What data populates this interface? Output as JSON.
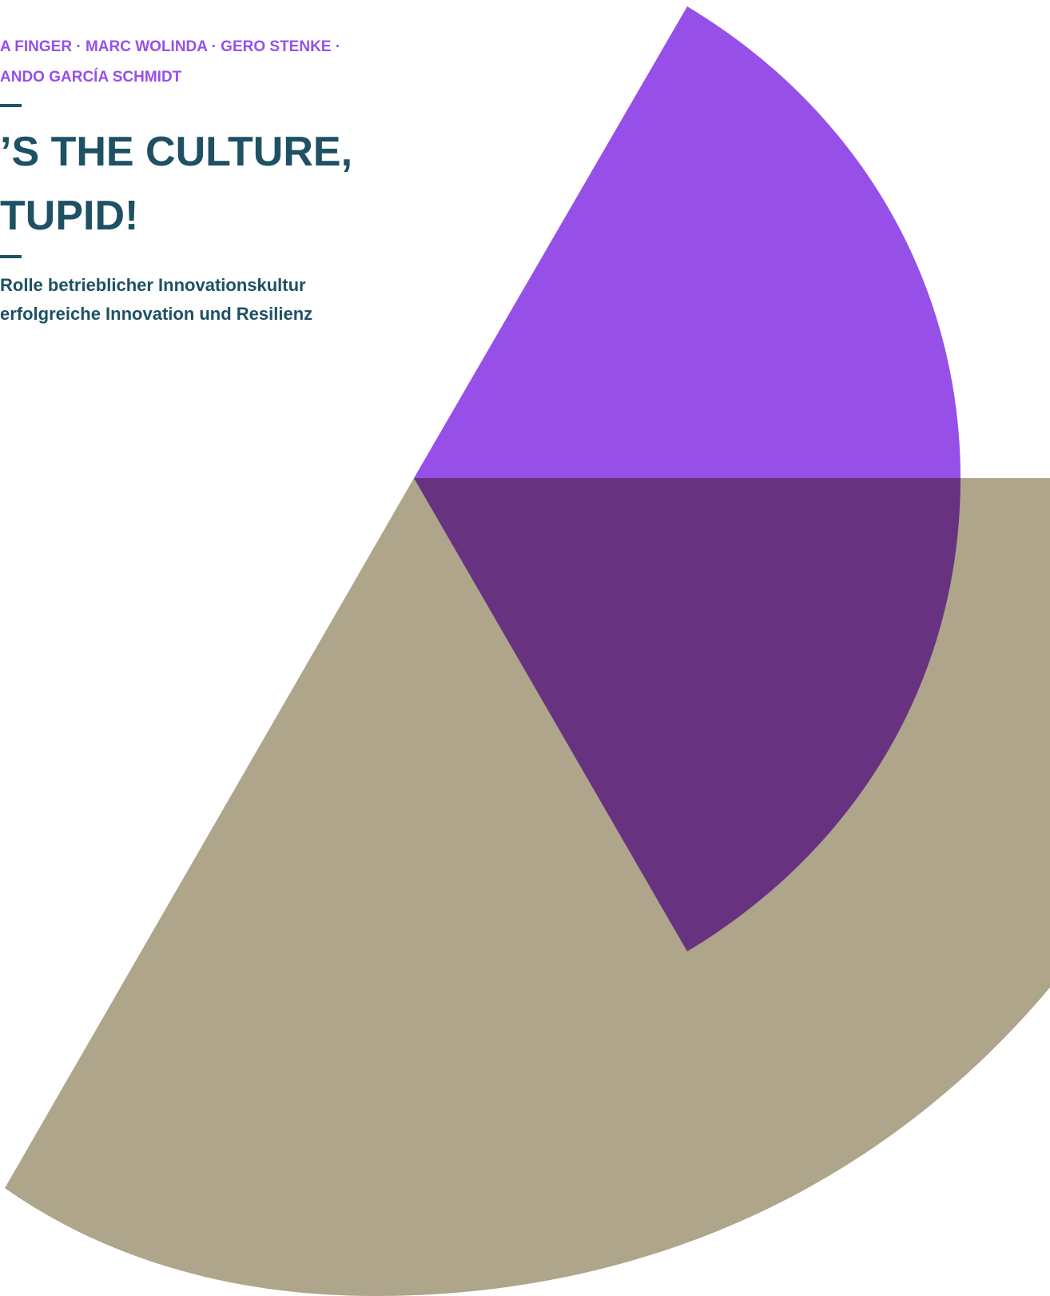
{
  "authors": {
    "line1": "A FINGER · MARC WOLINDA · GERO STENKE ·",
    "line2": "ANDO GARCÍA SCHMIDT"
  },
  "title": {
    "line1": "’S THE CULTURE,",
    "line2": "TUPID!"
  },
  "subtitle": {
    "line1": "Rolle betrieblicher Innovationskultur",
    "line2": "erfolgreiche Innovation und Resilienz"
  },
  "colors": {
    "accent_purple": "#9650e8",
    "dark_purple": "#673380",
    "taupe": "#aea58a",
    "title_teal": "#1d5163"
  }
}
